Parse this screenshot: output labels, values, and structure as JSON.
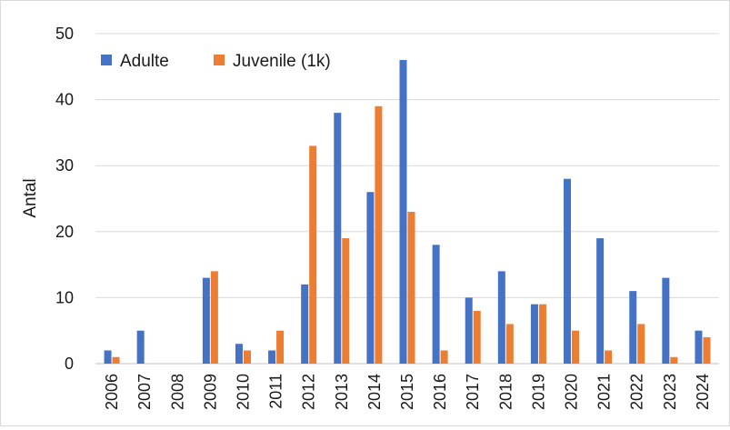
{
  "chart_data": {
    "type": "bar",
    "title": "",
    "xlabel": "",
    "ylabel": "Antal",
    "ylim": [
      0,
      50
    ],
    "yticks": [
      0,
      10,
      20,
      30,
      40,
      50
    ],
    "grid": "horizontal",
    "legend_position": "top-left",
    "categories": [
      "2006",
      "2007",
      "2008",
      "2009",
      "2010",
      "2011",
      "2012",
      "2013",
      "2014",
      "2015",
      "2016",
      "2017",
      "2018",
      "2019",
      "2020",
      "2021",
      "2022",
      "2023",
      "2024"
    ],
    "series": [
      {
        "name": "Adulte",
        "color": "#4472c4",
        "values": [
          2,
          5,
          0,
          13,
          3,
          2,
          12,
          38,
          26,
          46,
          18,
          10,
          14,
          9,
          28,
          19,
          11,
          13,
          5
        ]
      },
      {
        "name": "Juvenile (1k)",
        "color": "#ed7d31",
        "values": [
          1,
          0,
          0,
          14,
          2,
          5,
          33,
          19,
          39,
          23,
          2,
          8,
          6,
          9,
          5,
          2,
          6,
          1,
          4
        ]
      }
    ]
  }
}
